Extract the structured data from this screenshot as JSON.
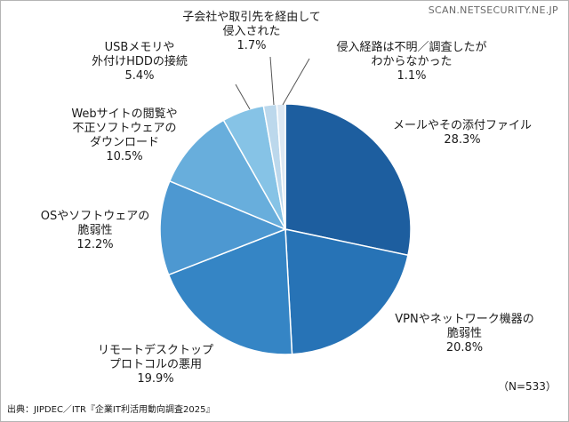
{
  "watermark": "SCAN.NETSECURITY.NE.JP",
  "source": "出典：JIPDEC／ITR『企業IT利活用動向調査2025』",
  "sample_size": "（N=533）",
  "chart_data": {
    "type": "pie",
    "title": "",
    "start_angle_deg": 0,
    "direction": "clockwise",
    "slices": [
      {
        "label_lines": [
          "メールやその添付ファイル"
        ],
        "value": 28.3,
        "value_label": "28.3%",
        "color": "#1d5e9f"
      },
      {
        "label_lines": [
          "VPNやネットワーク機器の",
          "脆弱性"
        ],
        "value": 20.8,
        "value_label": "20.8%",
        "color": "#2773b6"
      },
      {
        "label_lines": [
          "リモートデスクトップ",
          "プロトコルの悪用"
        ],
        "value": 19.9,
        "value_label": "19.9%",
        "color": "#3585c5"
      },
      {
        "label_lines": [
          "OSやソフトウェアの",
          "脆弱性"
        ],
        "value": 12.2,
        "value_label": "12.2%",
        "color": "#4d98d1"
      },
      {
        "label_lines": [
          "Webサイトの閲覧や",
          "不正ソフトウェアの",
          "ダウンロード"
        ],
        "value": 10.5,
        "value_label": "10.5%",
        "color": "#68aedc"
      },
      {
        "label_lines": [
          "USBメモリや",
          "外付けHDDの接続"
        ],
        "value": 5.4,
        "value_label": "5.4%",
        "color": "#86c3e6"
      },
      {
        "label_lines": [
          "子会社や取引先を経由して",
          "侵入された"
        ],
        "value": 1.7,
        "value_label": "1.7%",
        "color": "#bcd8ec"
      },
      {
        "label_lines": [
          "侵入経路は不明／調査したが",
          "わからなかった"
        ],
        "value": 1.1,
        "value_label": "1.1%",
        "color": "#dce8f3"
      }
    ]
  }
}
